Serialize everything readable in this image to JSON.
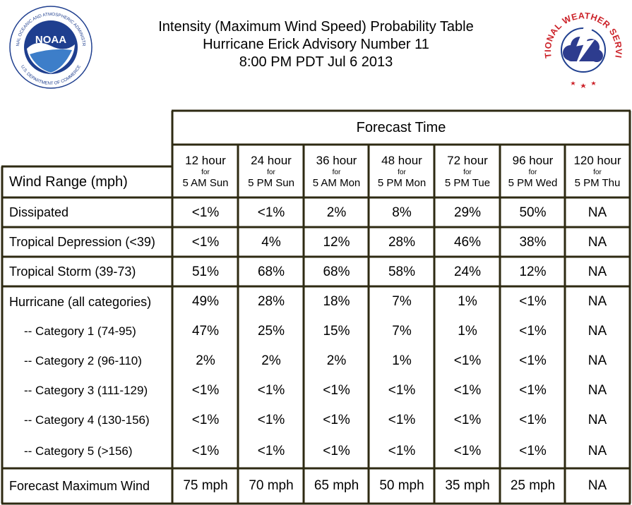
{
  "header": {
    "title": "Intensity (Maximum Wind Speed) Probability Table",
    "advisory": "Hurricane Erick Advisory Number 11",
    "issued": "8:00 PM PDT Jul 6 2013"
  },
  "logos": {
    "noaa": {
      "text": "NOAA",
      "ring_text": "NATIONAL OCEANIC AND ATMOSPHERIC ADMINISTRATION",
      "ring_text_bottom": "U.S. DEPARTMENT OF COMMERCE",
      "icon": "noaa-seagull-icon"
    },
    "nws": {
      "ring_text": "NATIONAL WEATHER SERVICE",
      "icon": "nws-lightning-cloud-icon"
    }
  },
  "table": {
    "forecast_time_label": "Forecast Time",
    "wind_range_label": "Wind Range (mph)",
    "columns": [
      {
        "hours": "12 hour",
        "for": "for",
        "when": "5 AM Sun"
      },
      {
        "hours": "24 hour",
        "for": "for",
        "when": "5 PM Sun"
      },
      {
        "hours": "36 hour",
        "for": "for",
        "when": "5 AM Mon"
      },
      {
        "hours": "48 hour",
        "for": "for",
        "when": "5 PM Mon"
      },
      {
        "hours": "72 hour",
        "for": "for",
        "when": "5 PM Tue"
      },
      {
        "hours": "96 hour",
        "for": "for",
        "when": "5 PM Wed"
      },
      {
        "hours": "120 hour",
        "for": "for",
        "when": "5 PM Thu"
      }
    ],
    "rows": [
      {
        "label": "Dissipated",
        "values": [
          "<1%",
          "<1%",
          "2%",
          "8%",
          "29%",
          "50%",
          "NA"
        ]
      },
      {
        "label": "Tropical Depression (<39)",
        "values": [
          "<1%",
          "4%",
          "12%",
          "28%",
          "46%",
          "38%",
          "NA"
        ]
      },
      {
        "label": "Tropical Storm (39-73)",
        "values": [
          "51%",
          "68%",
          "68%",
          "58%",
          "24%",
          "12%",
          "NA"
        ]
      },
      {
        "label": "Hurricane (all categories)",
        "values": [
          "49%",
          "28%",
          "18%",
          "7%",
          "1%",
          "<1%",
          "NA"
        ]
      },
      {
        "label": "-- Category 1 (74-95)",
        "values": [
          "47%",
          "25%",
          "15%",
          "7%",
          "1%",
          "<1%",
          "NA"
        ]
      },
      {
        "label": "-- Category 2 (96-110)",
        "values": [
          "2%",
          "2%",
          "2%",
          "1%",
          "<1%",
          "<1%",
          "NA"
        ]
      },
      {
        "label": "-- Category 3 (111-129)",
        "values": [
          "<1%",
          "<1%",
          "<1%",
          "<1%",
          "<1%",
          "<1%",
          "NA"
        ]
      },
      {
        "label": "-- Category 4 (130-156)",
        "values": [
          "<1%",
          "<1%",
          "<1%",
          "<1%",
          "<1%",
          "<1%",
          "NA"
        ]
      },
      {
        "label": "-- Category 5 (>156)",
        "values": [
          "<1%",
          "<1%",
          "<1%",
          "<1%",
          "<1%",
          "<1%",
          "NA"
        ]
      },
      {
        "label": "Forecast Maximum Wind",
        "values": [
          "75 mph",
          "70 mph",
          "65 mph",
          "50 mph",
          "35 mph",
          "25 mph",
          "NA"
        ]
      }
    ]
  },
  "colors": {
    "border": "#2e2a12",
    "noaa_blue": "#1f3f8f",
    "nws_red": "#cc2229"
  }
}
